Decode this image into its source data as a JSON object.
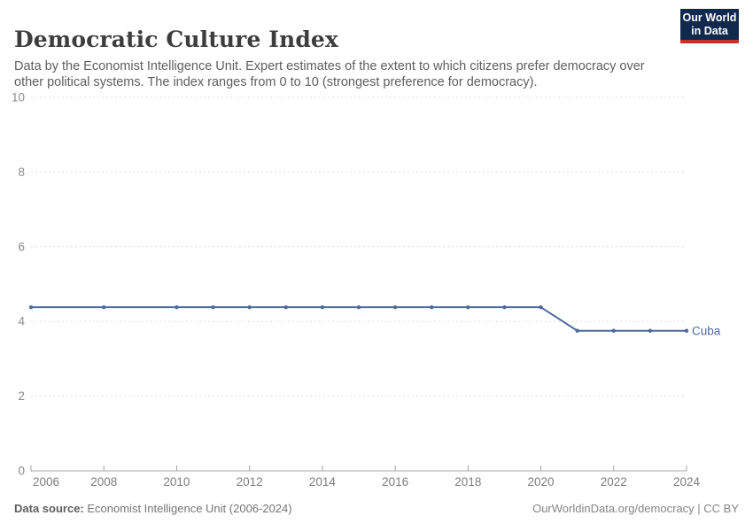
{
  "header": {
    "title": "Democratic Culture Index",
    "subtitle": "Data by the Economist Intelligence Unit. Expert estimates of the extent to which citizens prefer democracy over other political systems. The index ranges from 0 to 10 (strongest preference for democracy).",
    "logo": {
      "line1": "Our World",
      "line2": "in Data",
      "bg_color": "#12294e",
      "accent_color": "#c5312b"
    }
  },
  "chart_data": {
    "type": "line",
    "title": "Democratic Culture Index",
    "xlabel": "",
    "ylabel": "",
    "xlim": [
      2006,
      2024
    ],
    "ylim": [
      0,
      10
    ],
    "xticks": [
      2006,
      2008,
      2010,
      2012,
      2014,
      2016,
      2018,
      2020,
      2022,
      2024
    ],
    "yticks": [
      0,
      2,
      4,
      6,
      8,
      10
    ],
    "grid": "horizontal-dashed",
    "legend": "end-of-line-label",
    "series": [
      {
        "name": "Cuba",
        "color": "#4C6A9C",
        "points": [
          {
            "x": 2006,
            "y": 4.38
          },
          {
            "x": 2008,
            "y": 4.38
          },
          {
            "x": 2010,
            "y": 4.38
          },
          {
            "x": 2011,
            "y": 4.38
          },
          {
            "x": 2012,
            "y": 4.38
          },
          {
            "x": 2013,
            "y": 4.38
          },
          {
            "x": 2014,
            "y": 4.38
          },
          {
            "x": 2015,
            "y": 4.38
          },
          {
            "x": 2016,
            "y": 4.38
          },
          {
            "x": 2017,
            "y": 4.38
          },
          {
            "x": 2018,
            "y": 4.38
          },
          {
            "x": 2019,
            "y": 4.38
          },
          {
            "x": 2020,
            "y": 4.38
          },
          {
            "x": 2021,
            "y": 3.75
          },
          {
            "x": 2022,
            "y": 3.75
          },
          {
            "x": 2023,
            "y": 3.75
          },
          {
            "x": 2024,
            "y": 3.75
          }
        ]
      }
    ]
  },
  "footer": {
    "source_label": "Data source:",
    "source_value": " Economist Intelligence Unit (2006-2024)",
    "url_text": "OurWorldinData.org/democracy",
    "separator": " | ",
    "license_text": "CC BY"
  }
}
